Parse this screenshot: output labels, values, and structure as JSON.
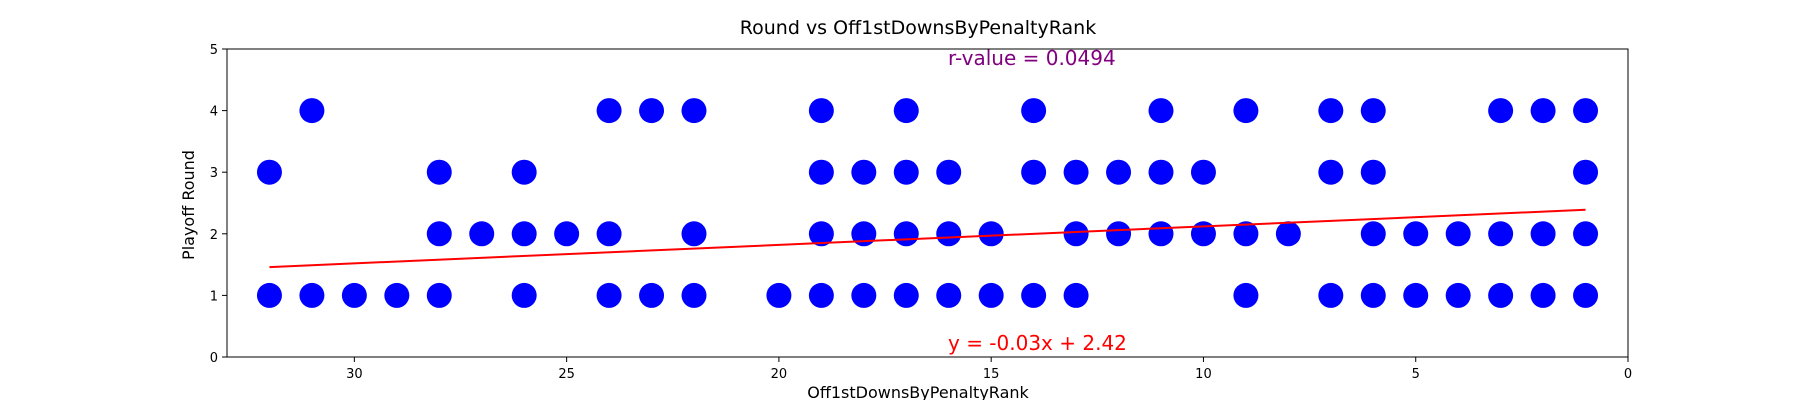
{
  "chart_data": {
    "type": "scatter",
    "title": "Round vs Off1stDownsByPenaltyRank",
    "xlabel": "Off1stDownsByPenaltyRank",
    "ylabel": "Playoff Round",
    "xlim": [
      33,
      0
    ],
    "ylim": [
      0,
      5
    ],
    "x_inverted": true,
    "grid": false,
    "xticks": [
      30,
      25,
      20,
      15,
      10,
      5,
      0
    ],
    "yticks": [
      0,
      1,
      2,
      3,
      4,
      5
    ],
    "point_color": "#0000ff",
    "fit_line": {
      "slope": -0.03,
      "intercept": 2.42,
      "x_range": [
        32,
        1
      ],
      "color": "#ff0000"
    },
    "annotations": {
      "r_value": {
        "text": "r-value = 0.0494",
        "color": "#800080"
      },
      "equation": {
        "text": "y = -0.03x + 2.42",
        "color": "#ff0000"
      }
    },
    "points": [
      {
        "x": 32,
        "y": 3
      },
      {
        "x": 32,
        "y": 1
      },
      {
        "x": 31,
        "y": 4
      },
      {
        "x": 31,
        "y": 1
      },
      {
        "x": 30,
        "y": 1
      },
      {
        "x": 29,
        "y": 1
      },
      {
        "x": 28,
        "y": 3
      },
      {
        "x": 28,
        "y": 2
      },
      {
        "x": 28,
        "y": 1
      },
      {
        "x": 27,
        "y": 2
      },
      {
        "x": 26,
        "y": 3
      },
      {
        "x": 26,
        "y": 2
      },
      {
        "x": 26,
        "y": 1
      },
      {
        "x": 25,
        "y": 2
      },
      {
        "x": 24,
        "y": 4
      },
      {
        "x": 24,
        "y": 2
      },
      {
        "x": 24,
        "y": 1
      },
      {
        "x": 23,
        "y": 4
      },
      {
        "x": 23,
        "y": 1
      },
      {
        "x": 22,
        "y": 4
      },
      {
        "x": 22,
        "y": 2
      },
      {
        "x": 22,
        "y": 1
      },
      {
        "x": 20,
        "y": 1
      },
      {
        "x": 19,
        "y": 4
      },
      {
        "x": 19,
        "y": 3
      },
      {
        "x": 19,
        "y": 2
      },
      {
        "x": 19,
        "y": 1
      },
      {
        "x": 18,
        "y": 3
      },
      {
        "x": 18,
        "y": 2
      },
      {
        "x": 18,
        "y": 1
      },
      {
        "x": 17,
        "y": 4
      },
      {
        "x": 17,
        "y": 3
      },
      {
        "x": 17,
        "y": 2
      },
      {
        "x": 17,
        "y": 1
      },
      {
        "x": 16,
        "y": 3
      },
      {
        "x": 16,
        "y": 2
      },
      {
        "x": 16,
        "y": 1
      },
      {
        "x": 15,
        "y": 2
      },
      {
        "x": 15,
        "y": 1
      },
      {
        "x": 14,
        "y": 4
      },
      {
        "x": 14,
        "y": 3
      },
      {
        "x": 14,
        "y": 1
      },
      {
        "x": 13,
        "y": 3
      },
      {
        "x": 13,
        "y": 2
      },
      {
        "x": 13,
        "y": 1
      },
      {
        "x": 12,
        "y": 3
      },
      {
        "x": 12,
        "y": 2
      },
      {
        "x": 11,
        "y": 4
      },
      {
        "x": 11,
        "y": 3
      },
      {
        "x": 11,
        "y": 2
      },
      {
        "x": 10,
        "y": 3
      },
      {
        "x": 10,
        "y": 2
      },
      {
        "x": 9,
        "y": 4
      },
      {
        "x": 9,
        "y": 2
      },
      {
        "x": 9,
        "y": 1
      },
      {
        "x": 8,
        "y": 2
      },
      {
        "x": 7,
        "y": 4
      },
      {
        "x": 7,
        "y": 3
      },
      {
        "x": 7,
        "y": 1
      },
      {
        "x": 6,
        "y": 4
      },
      {
        "x": 6,
        "y": 3
      },
      {
        "x": 6,
        "y": 2
      },
      {
        "x": 6,
        "y": 1
      },
      {
        "x": 5,
        "y": 2
      },
      {
        "x": 5,
        "y": 1
      },
      {
        "x": 4,
        "y": 2
      },
      {
        "x": 4,
        "y": 1
      },
      {
        "x": 3,
        "y": 4
      },
      {
        "x": 3,
        "y": 2
      },
      {
        "x": 3,
        "y": 1
      },
      {
        "x": 2,
        "y": 4
      },
      {
        "x": 2,
        "y": 2
      },
      {
        "x": 2,
        "y": 1
      },
      {
        "x": 1,
        "y": 4
      },
      {
        "x": 1,
        "y": 3
      },
      {
        "x": 1,
        "y": 2
      },
      {
        "x": 1,
        "y": 1
      }
    ]
  }
}
